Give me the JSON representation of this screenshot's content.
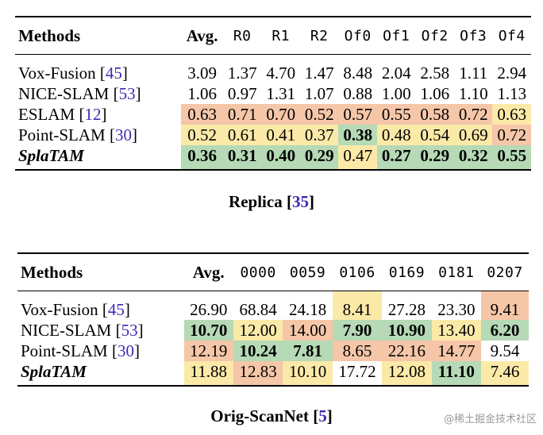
{
  "table1": {
    "headers": [
      "Methods",
      "Avg.",
      "R0",
      "R1",
      "R2",
      "Of0",
      "Of1",
      "Of2",
      "Of3",
      "Of4"
    ],
    "rows": [
      {
        "method": "Vox-Fusion",
        "ref": "45",
        "values": [
          "3.09",
          "1.37",
          "4.70",
          "1.47",
          "8.48",
          "2.04",
          "2.58",
          "1.11",
          "2.94"
        ],
        "colors": [
          "",
          "",
          "",
          "",
          "",
          "",
          "",
          "",
          ""
        ],
        "bold": [
          false,
          false,
          false,
          false,
          false,
          false,
          false,
          false,
          false
        ]
      },
      {
        "method": "NICE-SLAM",
        "ref": "53",
        "values": [
          "1.06",
          "0.97",
          "1.31",
          "1.07",
          "0.88",
          "1.00",
          "1.06",
          "1.10",
          "1.13"
        ],
        "colors": [
          "",
          "",
          "",
          "",
          "",
          "",
          "",
          "",
          ""
        ],
        "bold": [
          false,
          false,
          false,
          false,
          false,
          false,
          false,
          false,
          false
        ]
      },
      {
        "method": "ESLAM",
        "ref": "12",
        "values": [
          "0.63",
          "0.71",
          "0.70",
          "0.52",
          "0.57",
          "0.55",
          "0.58",
          "0.72",
          "0.63"
        ],
        "colors": [
          "red",
          "red",
          "red",
          "red",
          "red",
          "red",
          "red",
          "red",
          "yel"
        ],
        "bold": [
          false,
          false,
          false,
          false,
          false,
          false,
          false,
          false,
          false
        ]
      },
      {
        "method": "Point-SLAM",
        "ref": "30",
        "values": [
          "0.52",
          "0.61",
          "0.41",
          "0.37",
          "0.38",
          "0.48",
          "0.54",
          "0.69",
          "0.72"
        ],
        "colors": [
          "yel",
          "yel",
          "yel",
          "yel",
          "grn",
          "yel",
          "yel",
          "yel",
          "red"
        ],
        "bold": [
          false,
          false,
          false,
          false,
          true,
          false,
          false,
          false,
          false
        ]
      },
      {
        "method": "SplaTAM",
        "ref": "",
        "values": [
          "0.36",
          "0.31",
          "0.40",
          "0.29",
          "0.47",
          "0.27",
          "0.29",
          "0.32",
          "0.55"
        ],
        "colors": [
          "grn",
          "grn",
          "grn",
          "grn",
          "yel",
          "grn",
          "grn",
          "grn",
          "grn"
        ],
        "bold": [
          true,
          true,
          true,
          true,
          false,
          true,
          true,
          true,
          true
        ]
      }
    ],
    "caption": "Replica",
    "caption_ref": "35"
  },
  "table2": {
    "headers": [
      "Methods",
      "Avg.",
      "0000",
      "0059",
      "0106",
      "0169",
      "0181",
      "0207"
    ],
    "rows": [
      {
        "method": "Vox-Fusion",
        "ref": "45",
        "values": [
          "26.90",
          "68.84",
          "24.18",
          "8.41",
          "27.28",
          "23.30",
          "9.41"
        ],
        "colors": [
          "",
          "",
          "",
          "yel",
          "",
          "",
          "red"
        ],
        "bold": [
          false,
          false,
          false,
          false,
          false,
          false,
          false
        ]
      },
      {
        "method": "NICE-SLAM",
        "ref": "53",
        "values": [
          "10.70",
          "12.00",
          "14.00",
          "7.90",
          "10.90",
          "13.40",
          "6.20"
        ],
        "colors": [
          "grn",
          "yel",
          "red",
          "grn",
          "grn",
          "yel",
          "grn"
        ],
        "bold": [
          true,
          false,
          false,
          true,
          true,
          false,
          true
        ]
      },
      {
        "method": "Point-SLAM",
        "ref": "30",
        "values": [
          "12.19",
          "10.24",
          "7.81",
          "8.65",
          "22.16",
          "14.77",
          "9.54"
        ],
        "colors": [
          "red",
          "grn",
          "grn",
          "red",
          "red",
          "red",
          ""
        ],
        "bold": [
          false,
          true,
          true,
          false,
          false,
          false,
          false
        ]
      },
      {
        "method": "SplaTAM",
        "ref": "",
        "values": [
          "11.88",
          "12.83",
          "10.10",
          "17.72",
          "12.08",
          "11.10",
          "7.46"
        ],
        "colors": [
          "yel",
          "red",
          "yel",
          "",
          "yel",
          "grn",
          "yel"
        ],
        "bold": [
          false,
          false,
          false,
          false,
          false,
          true,
          false
        ]
      }
    ],
    "caption": "Orig-ScanNet",
    "caption_ref": "5"
  },
  "watermark": "@稀土掘金技术社区"
}
